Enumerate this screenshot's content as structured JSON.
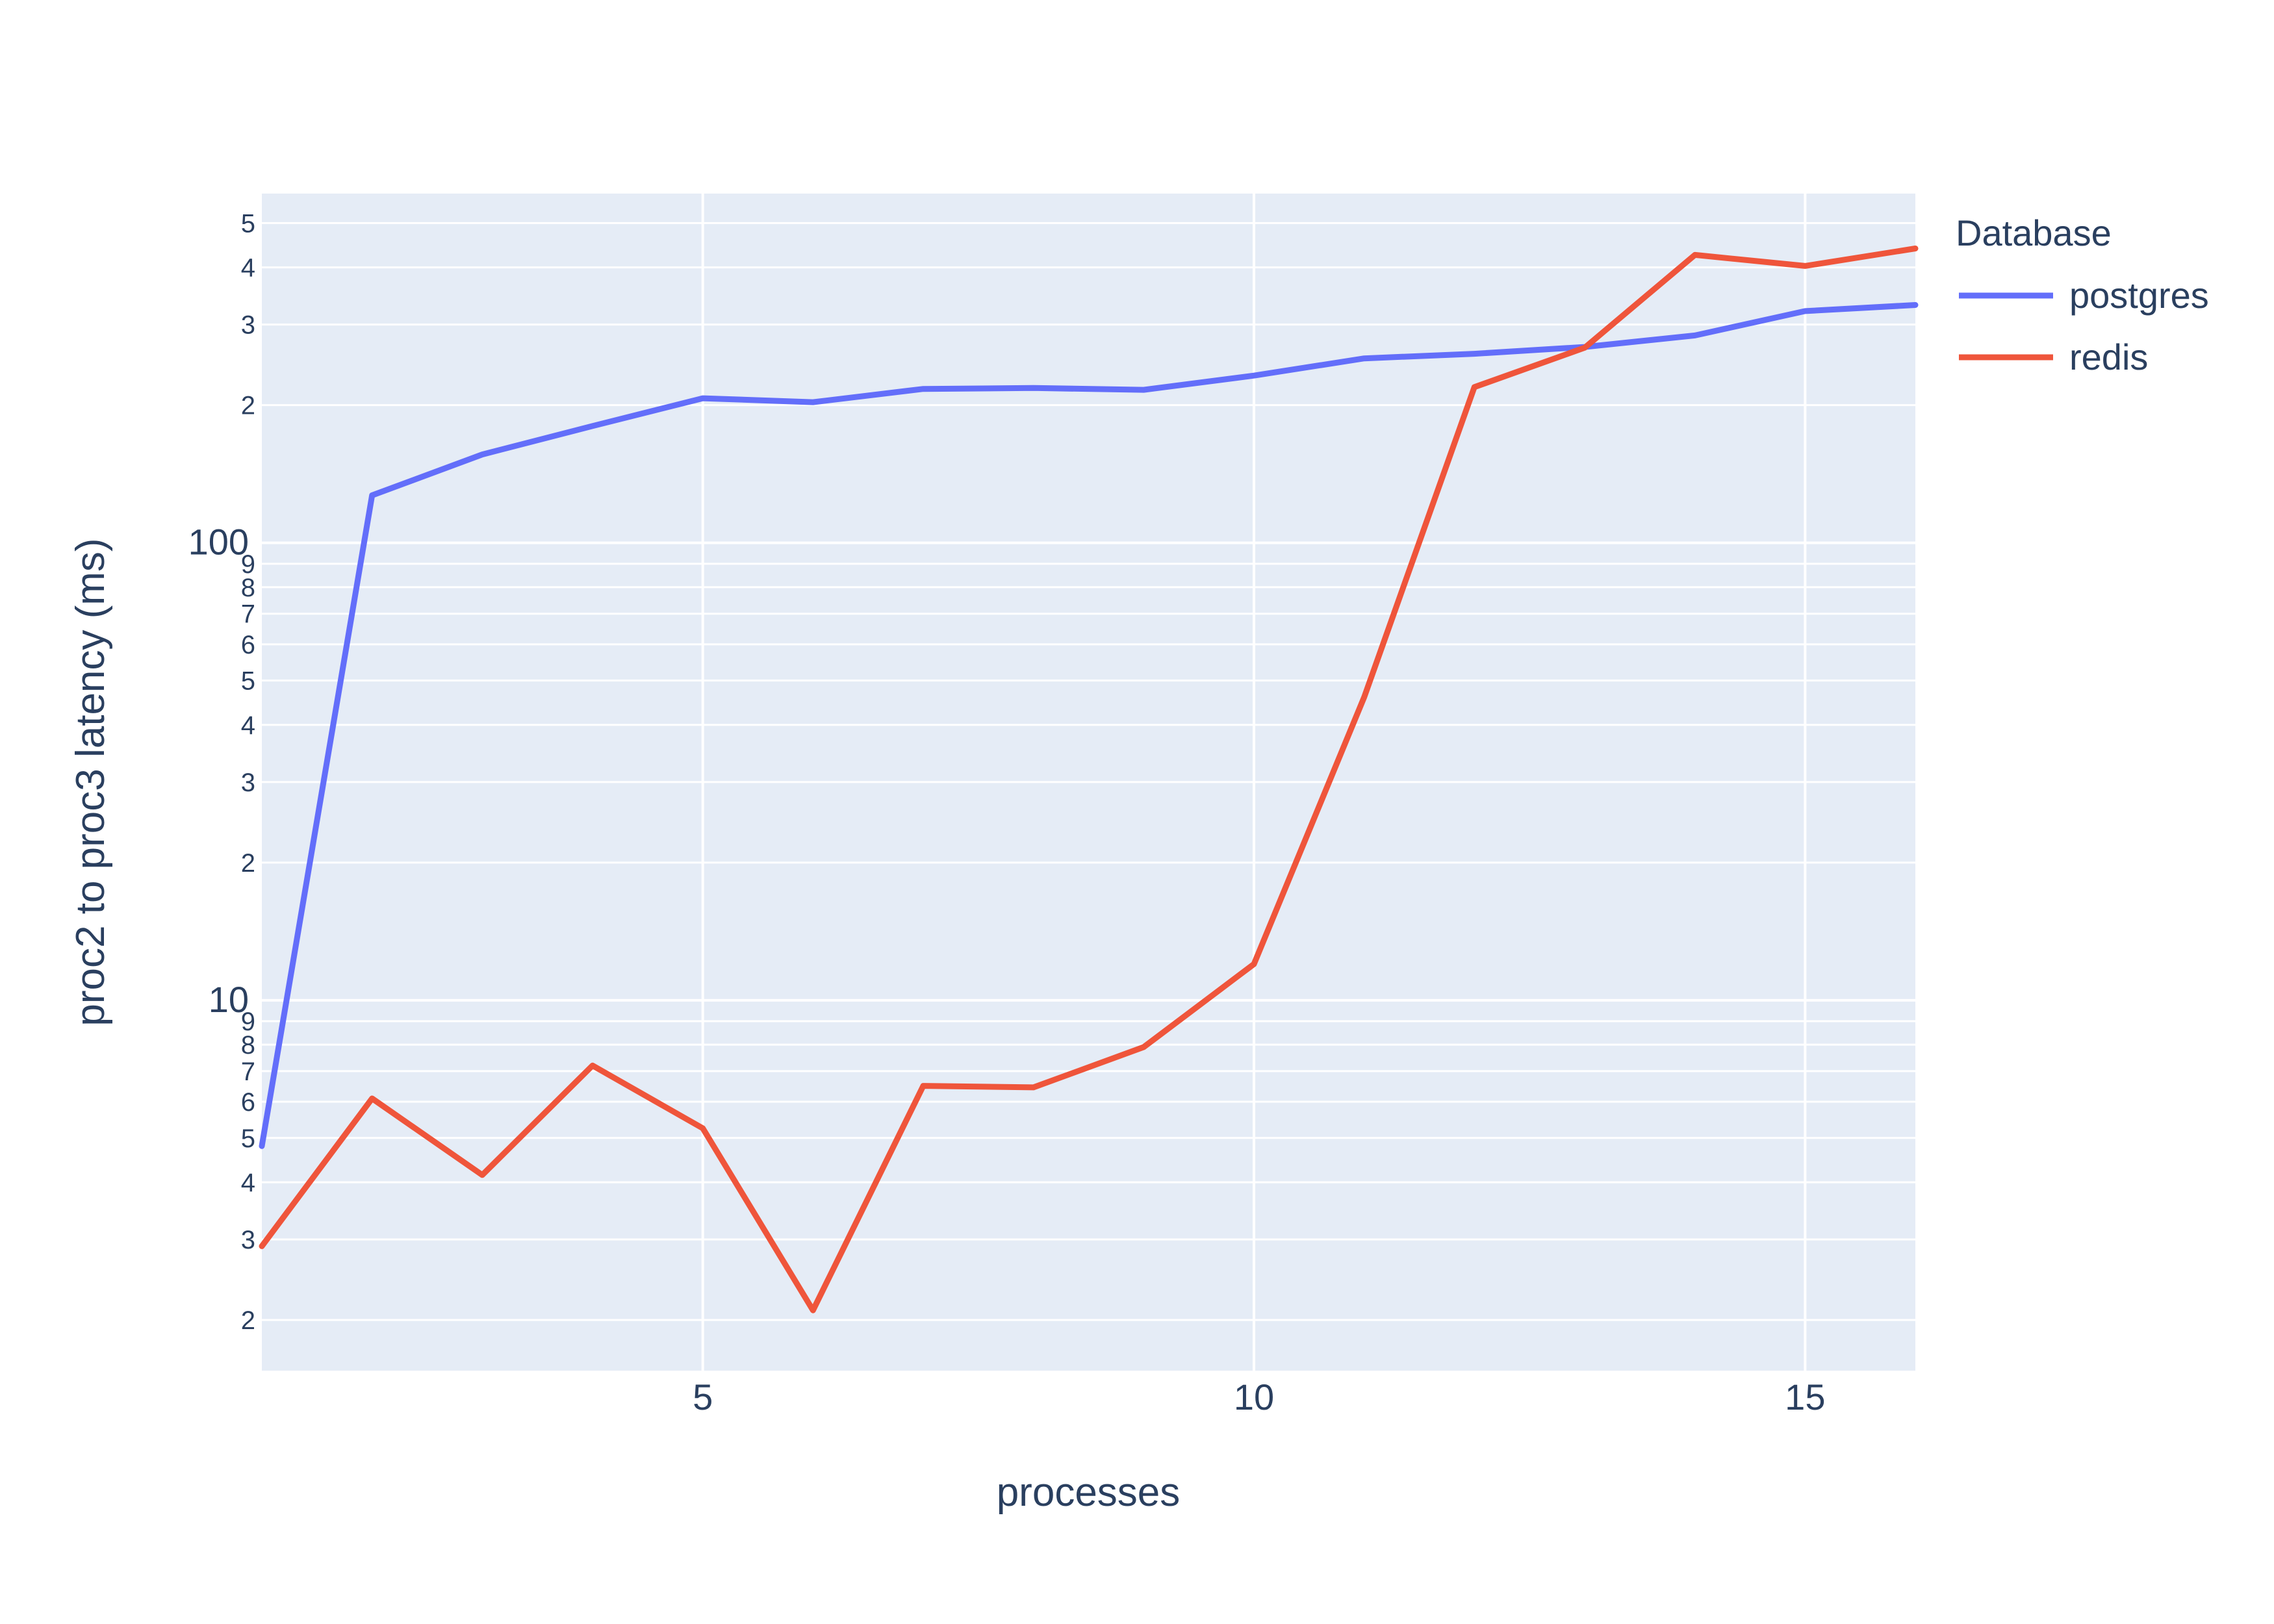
{
  "chart_data": {
    "type": "line",
    "xlabel": "processes",
    "ylabel": "proc2 to proc3 latency (ms)",
    "x_scale": "linear",
    "y_scale": "log",
    "xlim": [
      1,
      16
    ],
    "ylim": [
      1.55,
      580
    ],
    "x_ticks": [
      5,
      10,
      15
    ],
    "y_major_ticks": [
      10,
      100
    ],
    "y_minor_ticks": [
      2,
      3,
      4,
      5,
      6,
      7,
      8,
      9,
      20,
      30,
      40,
      50,
      60,
      70,
      80,
      90,
      200,
      300,
      400,
      500
    ],
    "grid": true,
    "background_color": "#e5ecf6",
    "grid_color": "#ffffff",
    "legend": {
      "title": "Database",
      "placement": "right"
    },
    "x": [
      1,
      2,
      3,
      4,
      5,
      6,
      7,
      8,
      9,
      10,
      11,
      12,
      13,
      14,
      15,
      16
    ],
    "series": [
      {
        "name": "postgres",
        "color": "#636efa",
        "values": [
          4.8,
          127,
          156,
          180,
          207,
          203,
          217,
          218,
          216,
          232,
          253,
          259,
          268,
          284,
          321,
          331
        ]
      },
      {
        "name": "redis",
        "color": "#ef553b",
        "values": [
          2.9,
          6.1,
          4.15,
          7.2,
          5.25,
          2.1,
          6.5,
          6.45,
          7.9,
          12,
          46,
          219,
          267,
          426,
          403,
          440
        ]
      }
    ]
  }
}
